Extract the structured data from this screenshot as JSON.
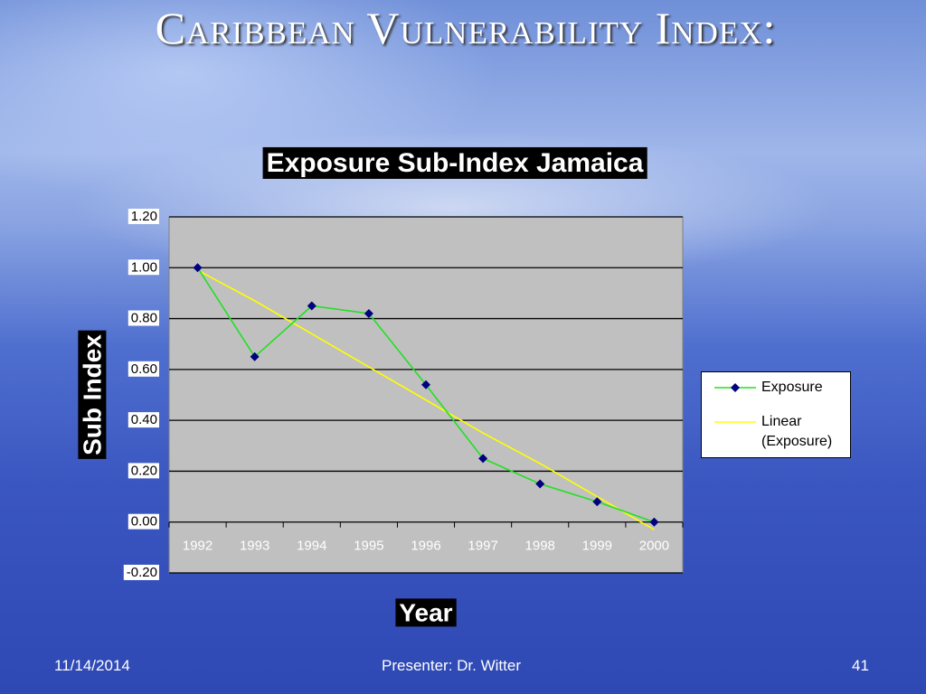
{
  "slide": {
    "title": "Caribbean Vulnerability Index:",
    "footer": {
      "date": "11/14/2014",
      "presenter": "Presenter: Dr. Witter",
      "page": "41"
    }
  },
  "chart_data": {
    "type": "line",
    "title": "Exposure Sub-Index Jamaica",
    "x_label": "Year",
    "y_label": "Sub Index",
    "categories": [
      "1992",
      "1993",
      "1994",
      "1995",
      "1996",
      "1997",
      "1998",
      "1999",
      "2000"
    ],
    "series": [
      {
        "name": "Exposure",
        "color": "#22e022",
        "marker_color": "#000080",
        "values": [
          1.0,
          0.65,
          0.85,
          0.82,
          0.54,
          0.25,
          0.15,
          0.08,
          0.0
        ]
      },
      {
        "name": "Linear (Exposure)",
        "color": "#ffff00",
        "values": [
          0.99,
          0.87,
          0.74,
          0.61,
          0.48,
          0.35,
          0.23,
          0.1,
          -0.03
        ]
      }
    ],
    "ylim": [
      -0.2,
      1.2
    ],
    "yticks": [
      {
        "value": -0.2,
        "label": "-0.20"
      },
      {
        "value": 0,
        "label": "0.00"
      },
      {
        "value": 0.2,
        "label": "0.20"
      },
      {
        "value": 0.4,
        "label": "0.40"
      },
      {
        "value": 0.6,
        "label": "0.60"
      },
      {
        "value": 0.8,
        "label": "0.80"
      },
      {
        "value": 1.0,
        "label": "1.00"
      },
      {
        "value": 1.2,
        "label": "1.20"
      }
    ],
    "grid": true,
    "legend": "right"
  }
}
